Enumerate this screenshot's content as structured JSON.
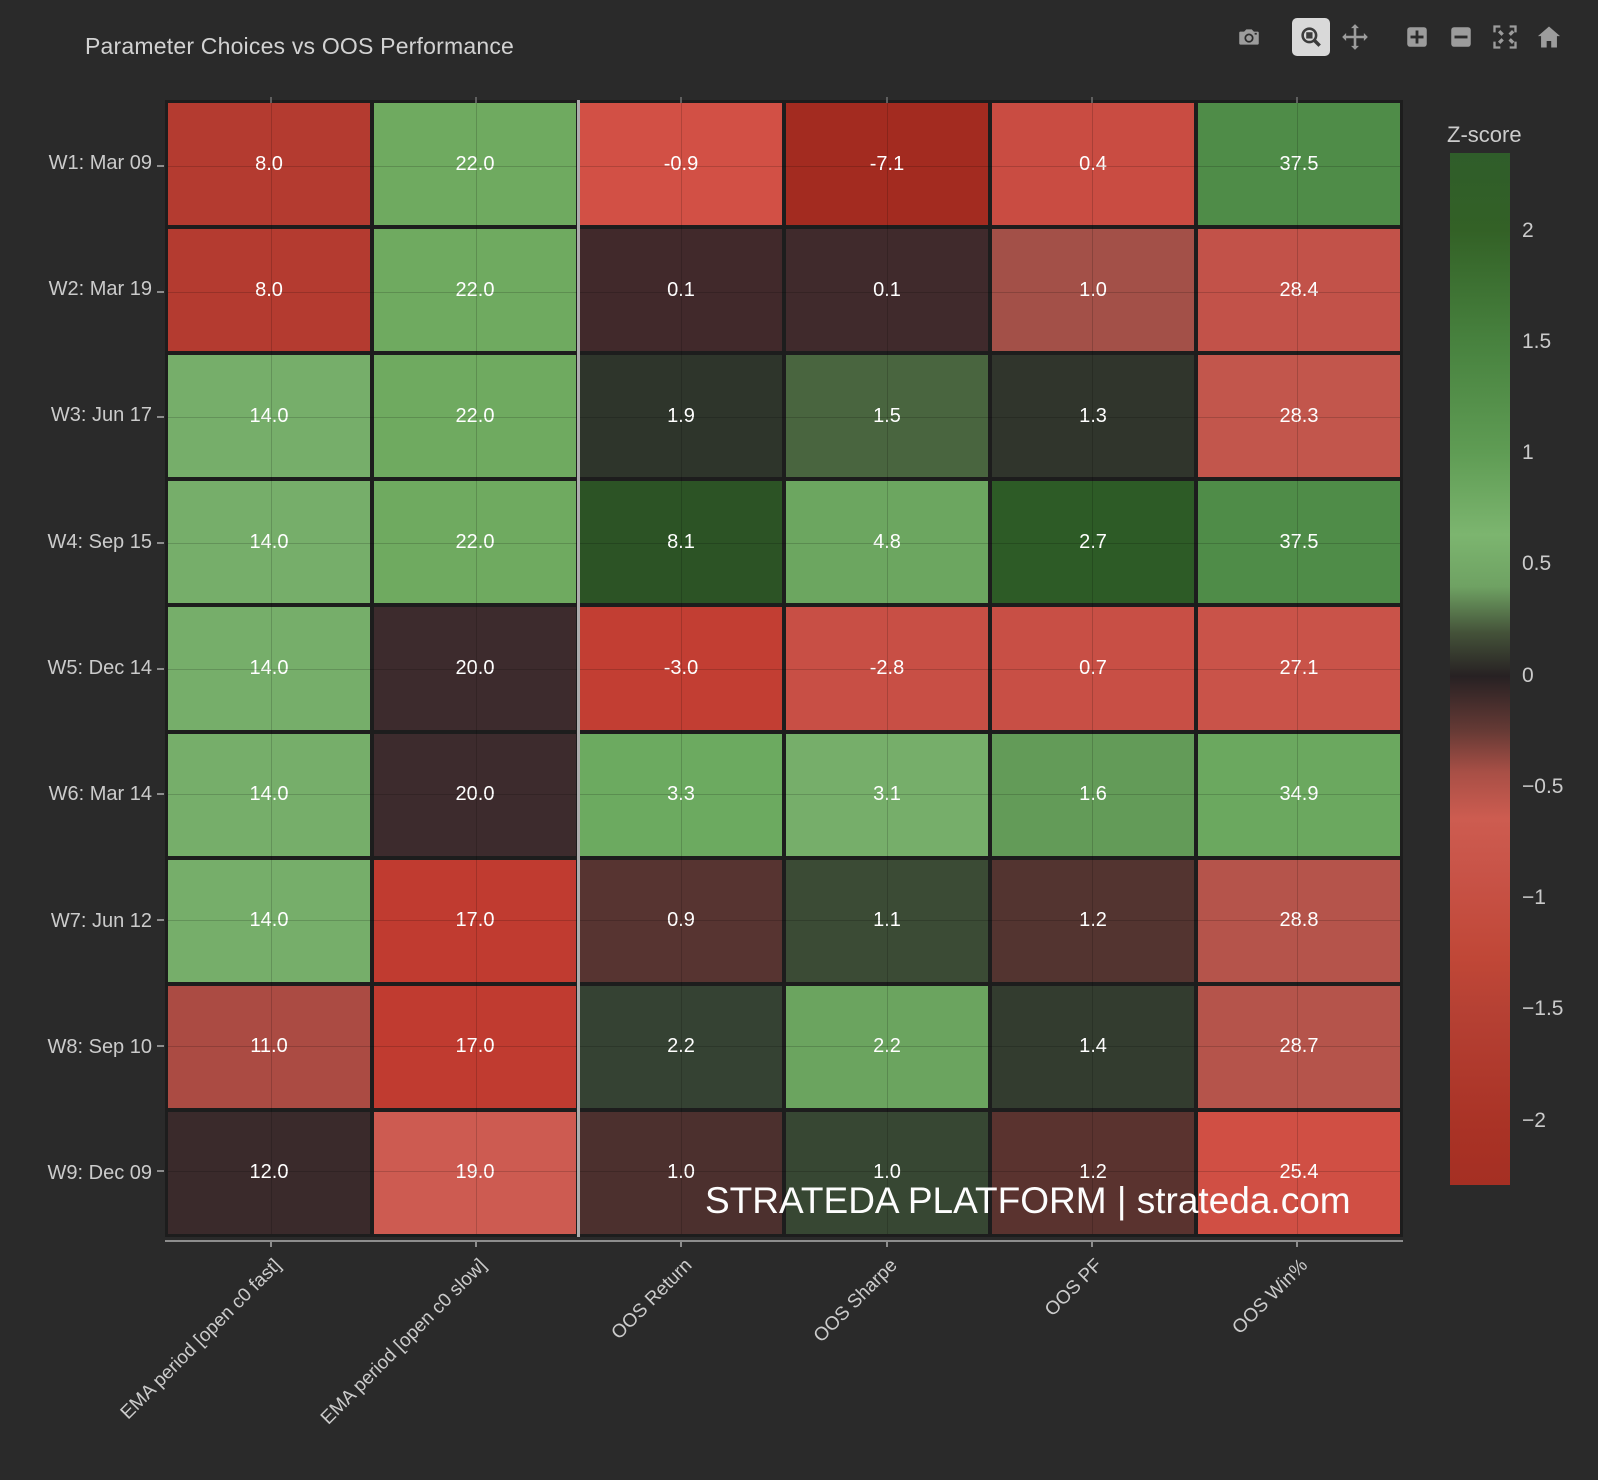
{
  "title": "Parameter Choices vs OOS Performance",
  "watermark": "STRATEDA PLATFORM | strateda.com",
  "modebar": {
    "buttons": [
      "Download plot as a png",
      "Zoom",
      "Pan",
      "Zoom in",
      "Zoom out",
      "Autoscale",
      "Reset axes"
    ],
    "active_button": "Zoom"
  },
  "colorbar": {
    "title": "Z-score",
    "zmax": 2.35,
    "zmin": -2.29,
    "ticks": [
      {
        "label": "2",
        "z": 2
      },
      {
        "label": "1.5",
        "z": 1.5
      },
      {
        "label": "1",
        "z": 1
      },
      {
        "label": "0.5",
        "z": 0.5
      },
      {
        "label": "0",
        "z": 0
      },
      {
        "label": "−0.5",
        "z": -0.5
      },
      {
        "label": "−1",
        "z": -1
      },
      {
        "label": "−1.5",
        "z": -1.5
      },
      {
        "label": "−2",
        "z": -2
      }
    ]
  },
  "chart_data": {
    "type": "heatmap",
    "title": "Parameter Choices vs OOS Performance",
    "rows": [
      "W1: Mar 09",
      "W2: Mar 19",
      "W3: Jun 17",
      "W4: Sep 15",
      "W5: Dec 14",
      "W6: Mar 14",
      "W7: Jun 12",
      "W8: Sep 10",
      "W9: Dec 09"
    ],
    "columns": [
      "EMA period [open c0 fast]",
      "EMA period [open c0 slow]",
      "OOS Return",
      "OOS Sharpe",
      "OOS PF",
      "OOS Win%"
    ],
    "values": [
      [
        8.0,
        22.0,
        -0.9,
        -7.1,
        0.4,
        37.5
      ],
      [
        8.0,
        22.0,
        0.1,
        0.1,
        1.0,
        28.4
      ],
      [
        14.0,
        22.0,
        1.9,
        1.5,
        1.3,
        28.3
      ],
      [
        14.0,
        22.0,
        8.1,
        4.8,
        2.7,
        37.5
      ],
      [
        14.0,
        20.0,
        -3.0,
        -2.8,
        0.7,
        27.1
      ],
      [
        14.0,
        20.0,
        3.3,
        3.1,
        1.6,
        34.9
      ],
      [
        14.0,
        17.0,
        0.9,
        1.1,
        1.2,
        28.8
      ],
      [
        11.0,
        17.0,
        2.2,
        2.2,
        1.4,
        28.7
      ],
      [
        12.0,
        19.0,
        1.0,
        1.0,
        1.2,
        25.4
      ]
    ],
    "cell_colors": [
      [
        "#b43b30",
        "#6faa60",
        "#d25045",
        "#a32b20",
        "#c94c42",
        "#4f8c48"
      ],
      [
        "#b43b30",
        "#6faa60",
        "#41292b",
        "#402a2c",
        "#a35048",
        "#c25249"
      ],
      [
        "#76ae6a",
        "#6faa60",
        "#2e352b",
        "#49653f",
        "#30352c",
        "#c2564c"
      ],
      [
        "#76ae6a",
        "#6faa60",
        "#2c5325",
        "#6ca660",
        "#2d5b26",
        "#4f8c48"
      ],
      [
        "#76ae6a",
        "#3d2b2d",
        "#c23e33",
        "#c84f45",
        "#c84f45",
        "#c95349"
      ],
      [
        "#76ae6a",
        "#3d2b2d",
        "#6caa60",
        "#76ae6a",
        "#639b58",
        "#6ba85f"
      ],
      [
        "#76ae6a",
        "#c03b30",
        "#573431",
        "#3b4b35",
        "#533430",
        "#b5544b"
      ],
      [
        "#ab4b43",
        "#c03b30",
        "#354233",
        "#6ba45f",
        "#333c2f",
        "#b5544b"
      ],
      [
        "#3a2a2b",
        "#cd5b51",
        "#4c302e",
        "#374733",
        "#5a332f",
        "#d04f44"
      ]
    ],
    "separator_after_column": 2,
    "colorbar_label": "Z-score",
    "legend_position": "right",
    "value_format": "one-decimal",
    "text_color": "#ffffff"
  }
}
